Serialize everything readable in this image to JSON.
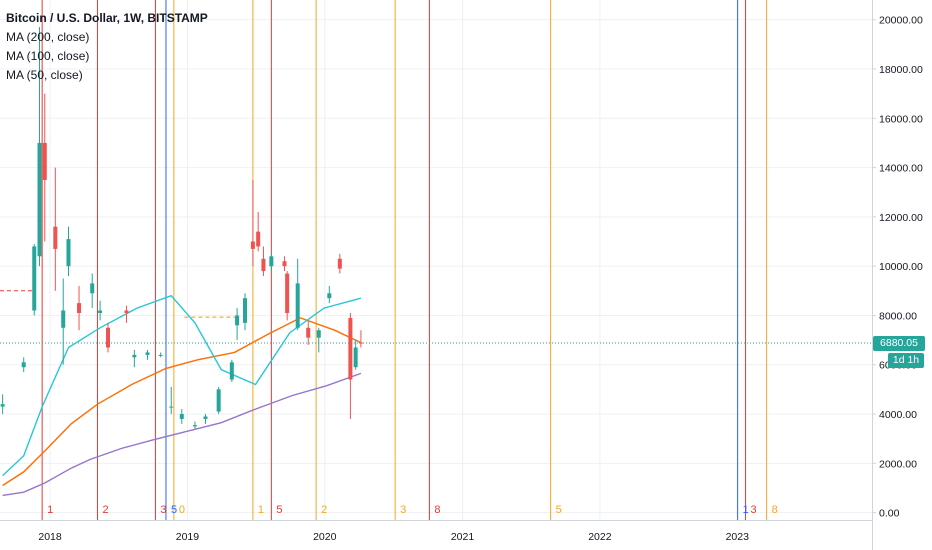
{
  "legend": {
    "title": "Bitcoin / U.S. Dollar, 1W, BITSTAMP",
    "ma200": "MA (200, close)",
    "ma100": "MA (100, close)",
    "ma50": "MA (50, close)"
  },
  "price_tag": {
    "value": "6880.05",
    "countdown": "1d 1h"
  },
  "colors": {
    "up": "#26a69a",
    "down": "#ef5350",
    "ma200": "#9575cd",
    "ma100": "#ff6d00",
    "ma50": "#26c6da",
    "vline_red": "#e53935",
    "vline_orange": "#f5a623",
    "vline_blue": "#2962ff",
    "last_price": "#26a69a"
  },
  "chart_data": {
    "type": "candlestick",
    "title": "Bitcoin / U.S. Dollar, 1W, BITSTAMP",
    "ylim": [
      -300,
      20800
    ],
    "x_range": [
      "2017-08-21",
      "2023-12-25"
    ],
    "y_ticks": [
      "0.00",
      "2000.00",
      "4000.00",
      "6000.00",
      "8000.00",
      "10000.00",
      "12000.00",
      "14000.00",
      "16000.00",
      "18000.00",
      "20000.00"
    ],
    "y_tick_values": [
      0,
      2000,
      4000,
      6000,
      8000,
      10000,
      12000,
      14000,
      16000,
      18000,
      20000
    ],
    "x_ticks": [
      "2018",
      "2019",
      "2020",
      "2021",
      "2022",
      "2023"
    ],
    "x_tick_dates": [
      "2018-01-01",
      "2019-01-01",
      "2020-01-01",
      "2021-01-01",
      "2022-01-01",
      "2023-01-01"
    ],
    "last_price": 6880.05,
    "dashed_level_red": 9000,
    "dashed_segment_orange": {
      "from": "2018-12-24",
      "to": "2019-05-13",
      "value": 7930
    },
    "series": [
      {
        "name": "MA (200, close)",
        "color": "#9575cd",
        "points": [
          [
            "2017-08-28",
            700
          ],
          [
            "2017-10-23",
            830
          ],
          [
            "2017-12-18",
            1200
          ],
          [
            "2018-02-26",
            1800
          ],
          [
            "2018-04-16",
            2150
          ],
          [
            "2018-07-09",
            2600
          ],
          [
            "2018-10-01",
            2950
          ],
          [
            "2018-12-31",
            3300
          ],
          [
            "2019-04-01",
            3650
          ],
          [
            "2019-07-01",
            4200
          ],
          [
            "2019-10-07",
            4750
          ],
          [
            "2020-01-06",
            5150
          ],
          [
            "2020-04-06",
            5650
          ]
        ]
      },
      {
        "name": "MA (100, close)",
        "color": "#ff6d00",
        "points": [
          [
            "2017-08-28",
            1100
          ],
          [
            "2017-10-23",
            1650
          ],
          [
            "2017-12-18",
            2500
          ],
          [
            "2018-02-26",
            3600
          ],
          [
            "2018-05-07",
            4400
          ],
          [
            "2018-08-06",
            5200
          ],
          [
            "2018-11-05",
            5850
          ],
          [
            "2019-01-28",
            6200
          ],
          [
            "2019-05-06",
            6500
          ],
          [
            "2019-08-05",
            7250
          ],
          [
            "2019-10-28",
            7900
          ],
          [
            "2020-01-27",
            7400
          ],
          [
            "2020-04-06",
            6900
          ]
        ]
      },
      {
        "name": "MA (50, close)",
        "color": "#26c6da",
        "points": [
          [
            "2017-08-28",
            1500
          ],
          [
            "2017-10-23",
            2300
          ],
          [
            "2017-12-11",
            4300
          ],
          [
            "2018-02-19",
            6700
          ],
          [
            "2018-05-14",
            7500
          ],
          [
            "2018-08-20",
            8300
          ],
          [
            "2018-11-19",
            8800
          ],
          [
            "2019-01-21",
            7700
          ],
          [
            "2019-04-01",
            5800
          ],
          [
            "2019-07-01",
            5200
          ],
          [
            "2019-09-30",
            7300
          ],
          [
            "2019-12-30",
            8300
          ],
          [
            "2020-04-06",
            8700
          ]
        ]
      }
    ],
    "candles": [
      [
        "2017-08-28",
        4300,
        4800,
        4000,
        4400
      ],
      [
        "2017-10-23",
        5900,
        6300,
        5700,
        6100
      ],
      [
        "2017-11-20",
        8200,
        10900,
        8000,
        10800
      ],
      [
        "2017-12-04",
        10400,
        19700,
        10000,
        15000
      ],
      [
        "2017-12-18",
        15000,
        17000,
        11000,
        13500
      ],
      [
        "2018-01-15",
        11600,
        14000,
        9000,
        10700
      ],
      [
        "2018-02-05",
        7500,
        9500,
        6000,
        8200
      ],
      [
        "2018-02-19",
        10000,
        11600,
        9600,
        11100
      ],
      [
        "2018-03-19",
        8500,
        9200,
        7400,
        8100
      ],
      [
        "2018-04-23",
        8900,
        9700,
        8300,
        9300
      ],
      [
        "2018-05-14",
        8100,
        8600,
        7800,
        8200
      ],
      [
        "2018-06-04",
        7500,
        7700,
        6500,
        6700
      ],
      [
        "2018-07-23",
        8200,
        8400,
        7700,
        8100
      ],
      [
        "2018-08-13",
        6300,
        6600,
        5900,
        6400
      ],
      [
        "2018-09-17",
        6400,
        6600,
        6200,
        6500
      ],
      [
        "2018-10-22",
        6400,
        6500,
        6300,
        6400
      ],
      [
        "2018-11-19",
        4300,
        5100,
        4000,
        4300
      ],
      [
        "2018-12-17",
        3800,
        4200,
        3600,
        4000
      ],
      [
        "2019-01-21",
        3500,
        3700,
        3400,
        3550
      ],
      [
        "2019-02-18",
        3800,
        4000,
        3600,
        3900
      ],
      [
        "2019-03-25",
        4100,
        5100,
        4000,
        5000
      ],
      [
        "2019-04-29",
        5400,
        6200,
        5300,
        6100
      ],
      [
        "2019-05-13",
        7600,
        8300,
        7000,
        8000
      ],
      [
        "2019-06-03",
        7700,
        8900,
        7400,
        8700
      ],
      [
        "2019-06-24",
        11000,
        13500,
        10000,
        10700
      ],
      [
        "2019-07-08",
        11400,
        12200,
        10600,
        10800
      ],
      [
        "2019-07-22",
        10300,
        10800,
        9600,
        9800
      ],
      [
        "2019-08-12",
        10000,
        10500,
        9800,
        10400
      ],
      [
        "2019-09-16",
        10200,
        10400,
        9800,
        10000
      ],
      [
        "2019-09-23",
        9700,
        9800,
        7800,
        8100
      ],
      [
        "2019-10-21",
        7500,
        10300,
        7400,
        9300
      ],
      [
        "2019-11-18",
        7500,
        7800,
        6800,
        7100
      ],
      [
        "2019-12-16",
        7100,
        7500,
        6500,
        7400
      ],
      [
        "2020-01-13",
        8700,
        9200,
        8500,
        8900
      ],
      [
        "2020-02-10",
        10300,
        10500,
        9700,
        9900
      ],
      [
        "2020-03-09",
        7900,
        8100,
        3800,
        5400
      ],
      [
        "2020-03-23",
        5900,
        7000,
        5800,
        6700
      ],
      [
        "2020-04-06",
        6900,
        7400,
        6700,
        6880
      ]
    ]
  },
  "vertical_markers": [
    {
      "date": "2017-12-11",
      "label": "1",
      "color": "#e53935"
    },
    {
      "date": "2018-05-07",
      "label": "2",
      "color": "#e53935"
    },
    {
      "date": "2018-10-08",
      "label": "3",
      "color": "#e53935"
    },
    {
      "date": "2018-11-05",
      "label": "5",
      "color": "#2962ff"
    },
    {
      "date": "2018-11-26",
      "label": "0",
      "color": "#f5a623"
    },
    {
      "date": "2019-06-24",
      "label": "1",
      "color": "#f5a623"
    },
    {
      "date": "2019-08-12",
      "label": "5",
      "color": "#e53935"
    },
    {
      "date": "2019-12-09",
      "label": "2",
      "color": "#f5a623"
    },
    {
      "date": "2020-07-06",
      "label": "3",
      "color": "#f5a623"
    },
    {
      "date": "2020-10-05",
      "label": "8",
      "color": "#e53935"
    },
    {
      "date": "2021-08-23",
      "label": "5",
      "color": "#f5a623"
    },
    {
      "date": "2023-01-02",
      "label": "1",
      "color": "#2962ff"
    },
    {
      "date": "2023-01-23",
      "label": "3",
      "color": "#e53935"
    },
    {
      "date": "2023-03-20",
      "label": "8",
      "color": "#f5a623"
    }
  ],
  "marker_label_13": "13"
}
